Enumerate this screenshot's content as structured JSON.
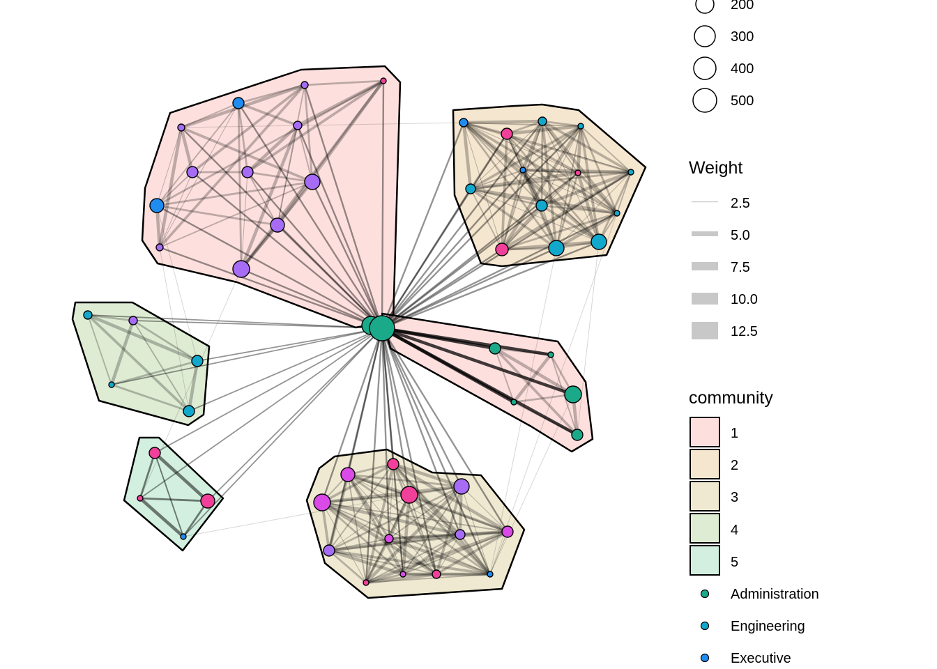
{
  "legend": {
    "size": {
      "values": [
        "200",
        "300",
        "400",
        "500"
      ]
    },
    "weight": {
      "title": "Weight",
      "values": [
        "2.5",
        "5.0",
        "7.5",
        "10.0",
        "12.5"
      ]
    },
    "community": {
      "title": "community",
      "items": [
        {
          "label": "1",
          "fill": "#fde0de"
        },
        {
          "label": "2",
          "fill": "#f5e6cf"
        },
        {
          "label": "3",
          "fill": "#efe9d2"
        },
        {
          "label": "4",
          "fill": "#dfecd4"
        },
        {
          "label": "5",
          "fill": "#d2efdf"
        }
      ]
    },
    "department": {
      "items": [
        {
          "label": "Administration",
          "color": "#1aaa8a"
        },
        {
          "label": "Engineering",
          "color": "#12a8cc"
        },
        {
          "label": "Executive",
          "color": "#1f8cf0"
        }
      ]
    }
  },
  "colors": {
    "Administration": "#1aaa8a",
    "Engineering": "#12a8cc",
    "Executive": "#1f8cf0",
    "Research": "#a66cf5",
    "Sales": "#f0409a",
    "Marketing": "#d94ae6"
  }
}
